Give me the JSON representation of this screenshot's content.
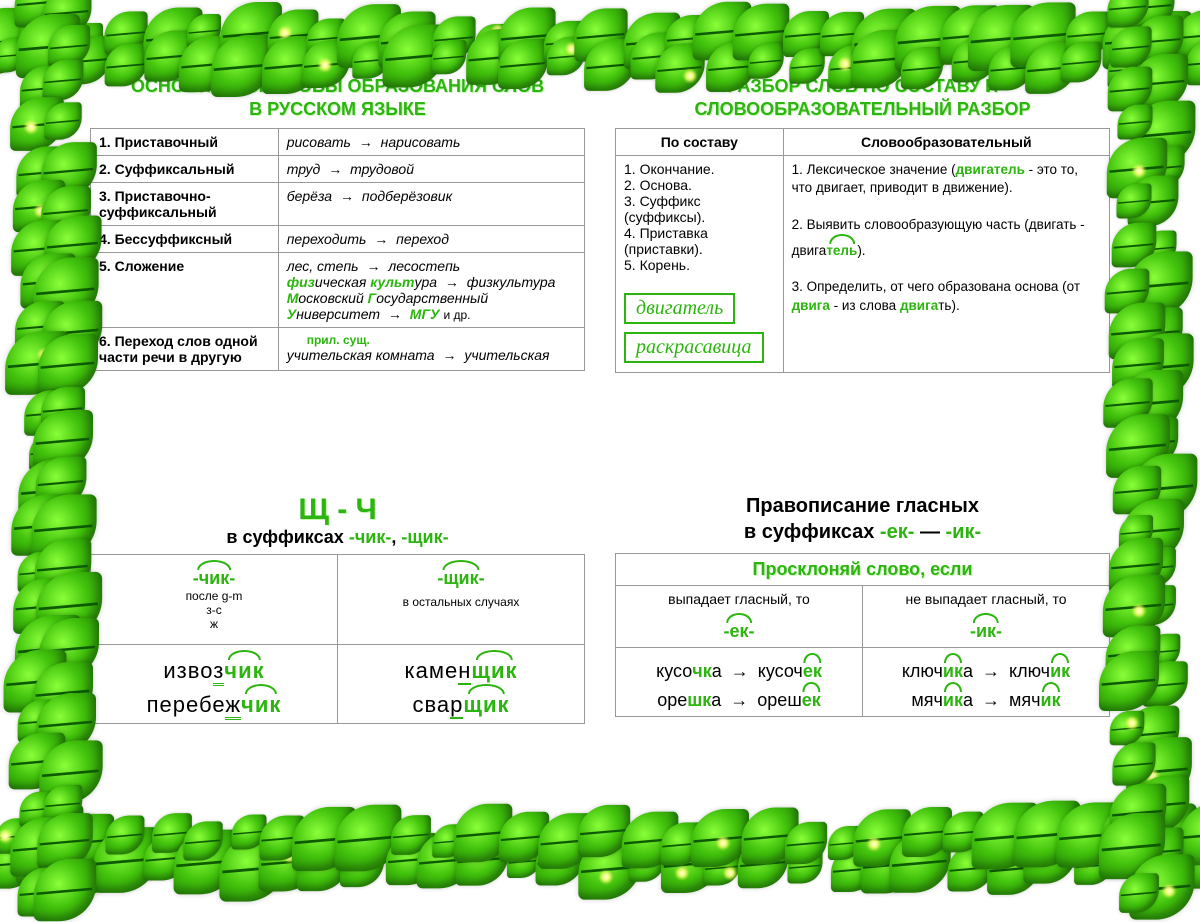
{
  "colors": {
    "green": "#2bb50e",
    "dark_green": "#1b7a05",
    "leaf_light": "#8aff3a",
    "border_gray": "#999999",
    "text": "#000000",
    "bg": "#ffffff"
  },
  "top_left": {
    "title_line1": "ОСНОВНЫЕ СПОСОБЫ ОБРАЗОВАНИЯ СЛОВ",
    "title_line2": "В РУССКОМ ЯЗЫКЕ",
    "title_fontsize": 18,
    "rows": [
      {
        "num": "1.",
        "name": "Приставочный",
        "example_from": "рисовать",
        "example_to": "нарисовать"
      },
      {
        "num": "2.",
        "name": "Суффиксальный",
        "example_from": "труд",
        "example_to": "трудовой"
      },
      {
        "num": "3.",
        "name": "Приставочно-суффиксальный",
        "example_from": "берёза",
        "example_to": "подберёзовик"
      },
      {
        "num": "4.",
        "name": "Бессуффиксный",
        "example_from": "переходить",
        "example_to": "переход"
      },
      {
        "num": "5.",
        "name": "Сложение",
        "examples": [
          {
            "from": "лес, степь",
            "to": "лесостепь"
          },
          {
            "from_html": "физическая культура",
            "to": "физкультура",
            "hl": [
              "физ",
              "культ"
            ]
          },
          {
            "from_html": "Московский Государственный Университет",
            "to": "МГУ",
            "suffix": "и др.",
            "hl": [
              "М",
              "Г",
              "У"
            ]
          }
        ]
      },
      {
        "num": "6.",
        "name": "Переход слов одной части речи в другую",
        "example_from": "учительская комната",
        "example_to": "учительская",
        "note_above": "прил.       сущ."
      }
    ]
  },
  "top_right": {
    "title_line1": "РАЗБОР СЛОВ ПО СОСТАВУ И",
    "title_line2": "СЛОВООБРАЗОВАТЕЛЬНЫЙ РАЗБОР",
    "title_fontsize": 18,
    "headers": [
      "По составу",
      "Словообразовательный"
    ],
    "left_list": [
      "1. Окончание.",
      "2. Основа.",
      "3. Суффикс (суффиксы).",
      "4. Приставка (приставки).",
      "5. Корень."
    ],
    "left_word1": "двигатель",
    "left_word2": "раскрасавица",
    "right_items": [
      {
        "num": "1.",
        "text": "Лексическое значение (",
        "hl": "двигатель",
        "text2": " - это то, что двигает, приводит в движение)."
      },
      {
        "num": "2.",
        "text": "Выявить словообразующую часть (двигать - двига",
        "hl": "тель",
        "text2": ")."
      },
      {
        "num": "3.",
        "text": "Определить, от чего образована основа (от ",
        "hl": "двига",
        "text2": " -  из слова ",
        "hl2": "двига",
        "text3": "ть)."
      }
    ]
  },
  "bottom_left": {
    "title_big": "Щ  -  Ч",
    "title_big_fontsize": 30,
    "subtitle_prefix": "в суффиксах ",
    "suffix1": "-чик-",
    "suffix2": "-щик-",
    "col1_head": "-чик-",
    "col1_rule_1": "после  g-m",
    "col1_rule_2": "з-с",
    "col1_rule_3": "ж",
    "col2_head": "-щик-",
    "col2_rule": "в остальных случаях",
    "col1_words": [
      "извозчик",
      "перебежчик"
    ],
    "col2_words": [
      "каменщик",
      "сварщик"
    ],
    "word_fontsize": 24
  },
  "bottom_right": {
    "title_line1": "Правописание гласных",
    "subtitle_prefix": "в суффиксах  ",
    "suffix1": "-ек-",
    "dash": " — ",
    "suffix2": "-ик-",
    "header_row": "Просклоняй слово, если",
    "col1_rule": "выпадает гласный, то",
    "col2_rule": "не выпадает гласный, то",
    "col1_suffix": "-ек-",
    "col2_suffix": "-ик-",
    "pairs_left": [
      {
        "from": "кусочка",
        "to": "кусочек",
        "hl_from": "чк",
        "hl_to": "ек"
      },
      {
        "from": "орешка",
        "to": "орешек",
        "hl_from": "шк",
        "hl_to": "ек"
      }
    ],
    "pairs_right": [
      {
        "from": "ключика",
        "to": "ключик",
        "hl_from": "ик",
        "hl_to": "ик"
      },
      {
        "from": "мячика",
        "to": "мячик",
        "hl_from": "ик",
        "hl_to": "ик"
      }
    ],
    "word_fontsize": 18
  }
}
